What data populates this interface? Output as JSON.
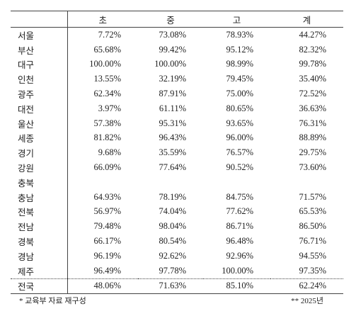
{
  "table": {
    "header": [
      "초",
      "중",
      "고",
      "계"
    ],
    "rows": [
      [
        "서울",
        "7.72%",
        "73.08%",
        "78.93%",
        "44.27%"
      ],
      [
        "부산",
        "65.68%",
        "99.42%",
        "95.12%",
        "82.32%"
      ],
      [
        "대구",
        "100.00%",
        "100.00%",
        "98.99%",
        "99.78%"
      ],
      [
        "인천",
        "13.55%",
        "32.19%",
        "79.45%",
        "35.40%"
      ],
      [
        "광주",
        "62.34%",
        "87.91%",
        "75.00%",
        "72.52%"
      ],
      [
        "대전",
        "3.97%",
        "61.11%",
        "80.65%",
        "36.63%"
      ],
      [
        "울산",
        "57.38%",
        "95.31%",
        "93.65%",
        "76.31%"
      ],
      [
        "세종",
        "81.82%",
        "96.43%",
        "96.00%",
        "88.89%"
      ],
      [
        "경기",
        "9.68%",
        "35.59%",
        "76.57%",
        "29.75%"
      ],
      [
        "강원",
        "66.09%",
        "77.64%",
        "90.52%",
        "73.60%"
      ],
      [
        "충북"
      ],
      [
        "충남",
        "64.93%",
        "78.19%",
        "84.75%",
        "71.57%"
      ],
      [
        "전북",
        "56.97%",
        "74.04%",
        "77.62%",
        "65.53%"
      ],
      [
        "전남",
        "79.48%",
        "98.04%",
        "86.71%",
        "86.50%"
      ],
      [
        "경북",
        "66.17%",
        "80.54%",
        "96.48%",
        "76.71%"
      ],
      [
        "경남",
        "96.19%",
        "92.62%",
        "92.96%",
        "94.55%"
      ],
      [
        "제주",
        "96.49%",
        "97.78%",
        "100.00%",
        "97.35%"
      ]
    ],
    "total": [
      "전국",
      "48.06%",
      "71.63%",
      "85.10%",
      "62.24%"
    ]
  },
  "notes": [
    "* 교육부 자료 재구성",
    "** 2025년"
  ]
}
